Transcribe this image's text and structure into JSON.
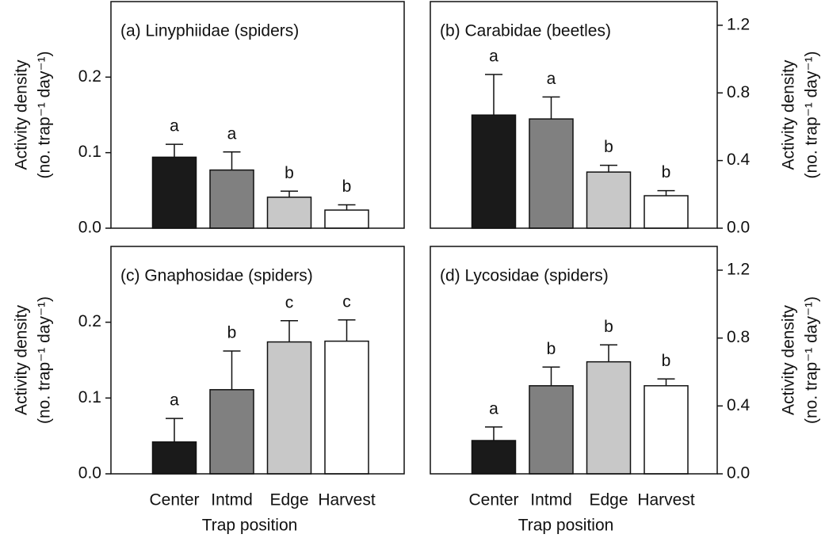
{
  "chart_data": [
    {
      "type": "bar",
      "title": "(a) Linyphiidae (spiders)",
      "ylabel": [
        "Activity density",
        "(no. trap⁻¹ day⁻¹)"
      ],
      "y_axis_side": "left",
      "values": [
        0.094,
        0.077,
        0.041,
        0.024
      ],
      "errors": [
        0.017,
        0.024,
        0.008,
        0.007
      ],
      "annotations": [
        "a",
        "a",
        "b",
        "b"
      ],
      "colors": [
        "#1a1a1a",
        "#808080",
        "#c8c8c8",
        "#ffffff"
      ],
      "ylim": [
        0,
        0.3
      ],
      "yticks": [
        {
          "value": 0,
          "label": "0.0"
        },
        0.1,
        0.2
      ]
    },
    {
      "type": "bar",
      "title": "(b) Carabidae (beetles)",
      "ylabel": [
        "Activity density",
        "(no. trap⁻¹ day⁻¹)"
      ],
      "y_axis_side": "right",
      "values": [
        0.669,
        0.646,
        0.332,
        0.192
      ],
      "errors": [
        0.24,
        0.13,
        0.04,
        0.03
      ],
      "annotations": [
        "a",
        "a",
        "b",
        "b"
      ],
      "colors": [
        "#1a1a1a",
        "#808080",
        "#c8c8c8",
        "#ffffff"
      ],
      "ylim": [
        0,
        1.34
      ],
      "yticks": [
        {
          "value": 0,
          "label": "0.0"
        },
        0.4,
        0.8,
        1.2
      ]
    },
    {
      "type": "bar",
      "title": "(c) Gnaphosidae (spiders)",
      "ylabel": [
        "Activity density",
        "(no. trap⁻¹ day⁻¹)"
      ],
      "y_axis_side": "left",
      "xlabel": "Trap position",
      "categories": [
        "Center",
        "Intmd",
        "Edge",
        "Harvest"
      ],
      "values": [
        0.042,
        0.111,
        0.174,
        0.175
      ],
      "errors": [
        0.031,
        0.051,
        0.028,
        0.028
      ],
      "annotations": [
        "a",
        "b",
        "c",
        "c"
      ],
      "colors": [
        "#1a1a1a",
        "#808080",
        "#c8c8c8",
        "#ffffff"
      ],
      "ylim": [
        0,
        0.3
      ],
      "yticks": [
        {
          "value": 0,
          "label": "0.0"
        },
        0.1,
        0.2
      ]
    },
    {
      "type": "bar",
      "title": "(d) Lycosidae (spiders)",
      "ylabel": [
        "Activity density",
        "(no. trap⁻¹ day⁻¹)"
      ],
      "y_axis_side": "right",
      "xlabel": "Trap position",
      "categories": [
        "Center",
        "Intmd",
        "Edge",
        "Harvest"
      ],
      "values": [
        0.196,
        0.519,
        0.66,
        0.519
      ],
      "errors": [
        0.08,
        0.11,
        0.1,
        0.04
      ],
      "annotations": [
        "a",
        "b",
        "b",
        "b"
      ],
      "colors": [
        "#1a1a1a",
        "#808080",
        "#c8c8c8",
        "#ffffff"
      ],
      "ylim": [
        0,
        1.34
      ],
      "yticks": [
        {
          "value": 0,
          "label": "0.0"
        },
        0.4,
        0.8,
        1.2
      ]
    }
  ]
}
